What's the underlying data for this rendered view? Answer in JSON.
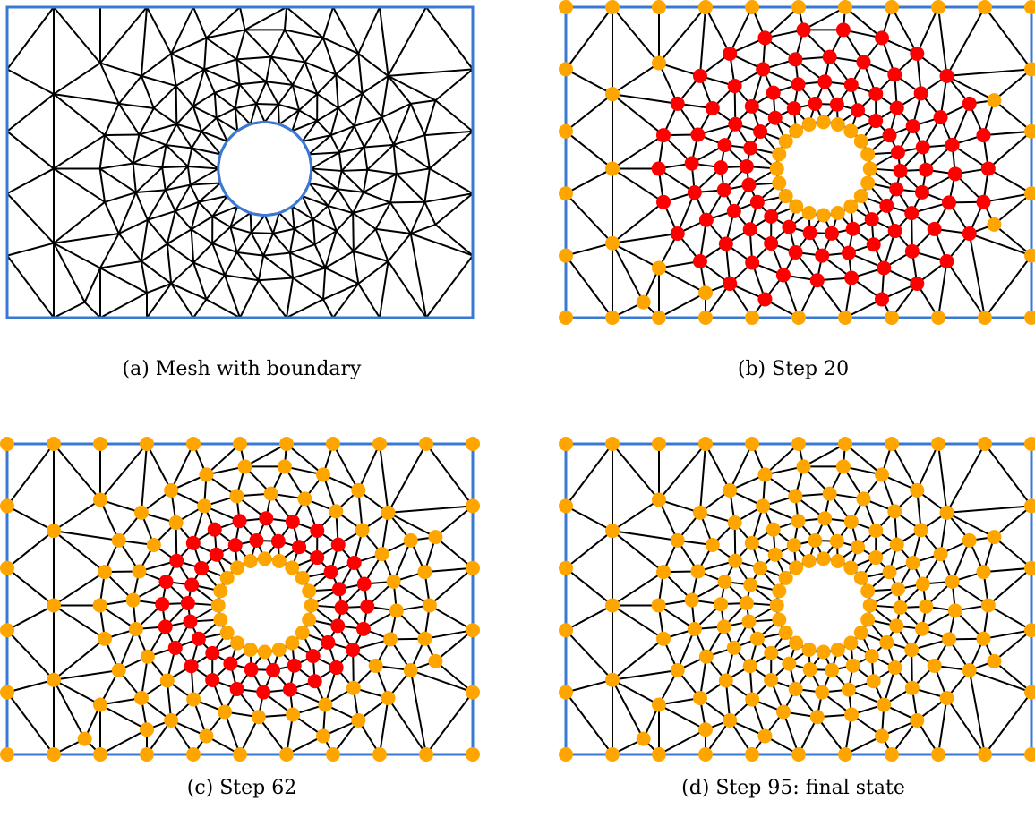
{
  "figure": {
    "panels": [
      {
        "id": "a",
        "caption": "(a) Mesh with boundary",
        "mode": "mesh",
        "step": null
      },
      {
        "id": "b",
        "caption": "(b) Step 20",
        "mode": "step",
        "step": 20
      },
      {
        "id": "c",
        "caption": "(c) Step 62",
        "mode": "step",
        "step": 62
      },
      {
        "id": "d",
        "caption": "(d) Step 95: final state",
        "mode": "final",
        "step": 95
      }
    ],
    "colors": {
      "boundary": "#3a78d6",
      "edge": "#000000",
      "processed_node": "#ffa500",
      "active_node": "#ff0000"
    }
  }
}
